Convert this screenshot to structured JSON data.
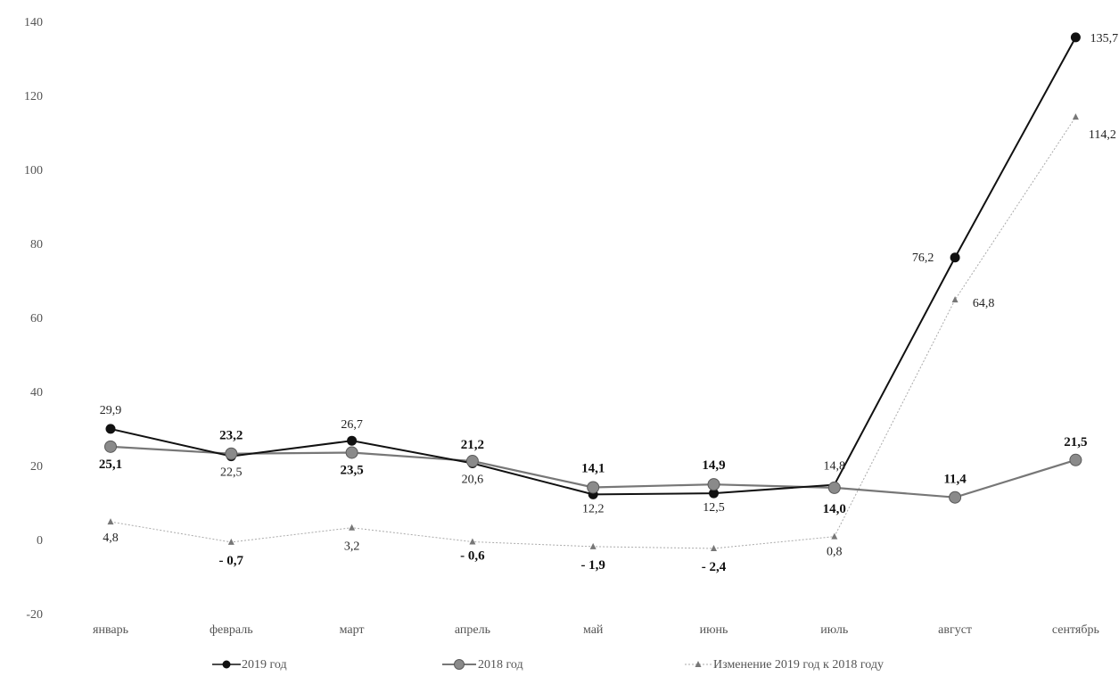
{
  "chart_data": {
    "type": "line",
    "categories": [
      "январь",
      "февраль",
      "март",
      "апрель",
      "май",
      "июнь",
      "июль",
      "август",
      "сентябрь"
    ],
    "ylim": [
      -20,
      140
    ],
    "yticks": [
      140,
      120,
      100,
      80,
      60,
      40,
      20,
      0,
      -20
    ],
    "ytick_labels": [
      "140",
      "120",
      "100",
      "80",
      "60",
      "40",
      "20",
      "0",
      "-20"
    ],
    "grid": false,
    "legend_position": "bottom",
    "series": [
      {
        "name": "2019 год",
        "color": "#111111",
        "marker": "circle",
        "values": [
          29.9,
          22.5,
          26.7,
          20.6,
          12.2,
          12.5,
          14.8,
          76.2,
          135.7
        ],
        "labels": [
          "29,9",
          "22,5",
          "26,7",
          "20,6",
          "12,2",
          "12,5",
          "14,8",
          "76,2",
          "135,7"
        ]
      },
      {
        "name": "2018 год",
        "color": "#777777",
        "marker": "circle",
        "values": [
          25.1,
          23.2,
          23.5,
          21.2,
          14.1,
          14.9,
          14.0,
          11.4,
          21.5
        ],
        "labels": [
          "25,1",
          "23,2",
          "23,5",
          "21,2",
          "14,1",
          "14,9",
          "14,0",
          "11,4",
          "21,5"
        ]
      },
      {
        "name": "Изменение 2019 год к 2018 году",
        "color": "#aaaaaa",
        "marker": "triangle",
        "values": [
          4.8,
          -0.7,
          3.2,
          -0.6,
          -1.9,
          -2.4,
          0.8,
          64.8,
          114.2
        ],
        "labels": [
          "4,8",
          "- 0,7",
          "3,2",
          "- 0,6",
          "- 1,9",
          "- 2,4",
          "0,8",
          "64,8",
          "114,2"
        ]
      }
    ]
  }
}
